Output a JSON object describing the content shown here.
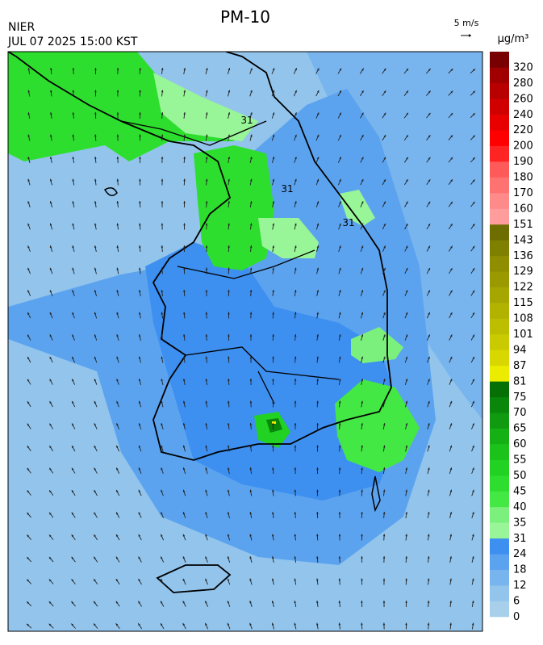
{
  "header": {
    "title": "PM-10",
    "agency": "NIER",
    "datetime": "JUL 07 2025 15:00 KST",
    "wind_scale": "5 m/s"
  },
  "legend": {
    "unit": "μg/m³",
    "ticks": [
      "0",
      "6",
      "12",
      "18",
      "24",
      "31",
      "35",
      "40",
      "45",
      "50",
      "55",
      "60",
      "65",
      "70",
      "75",
      "81",
      "87",
      "94",
      "101",
      "108",
      "115",
      "122",
      "129",
      "136",
      "143",
      "151",
      "160",
      "170",
      "180",
      "190",
      "200",
      "220",
      "240",
      "260",
      "280",
      "320"
    ],
    "colors": [
      "#a8d0ea",
      "#92c4ec",
      "#78b4ee",
      "#5ca3ef",
      "#3d8ff0",
      "#98f598",
      "#7cf07c",
      "#44e844",
      "#2ede2e",
      "#22d222",
      "#1ac21a",
      "#14b014",
      "#0f9a0f",
      "#0a860a",
      "#067006",
      "#ecec00",
      "#d8d800",
      "#caca00",
      "#bebe00",
      "#b2b200",
      "#a6a600",
      "#9a9a00",
      "#8e8e00",
      "#808000",
      "#6e6e00",
      "#ff9c9c",
      "#ff8a8a",
      "#ff7272",
      "#ff5a5a",
      "#ff2424",
      "#ff0000",
      "#e80000",
      "#d00000",
      "#b80000",
      "#a00000",
      "#780000"
    ]
  },
  "map": {
    "contour_labels": [
      "31",
      "31",
      "31"
    ]
  }
}
